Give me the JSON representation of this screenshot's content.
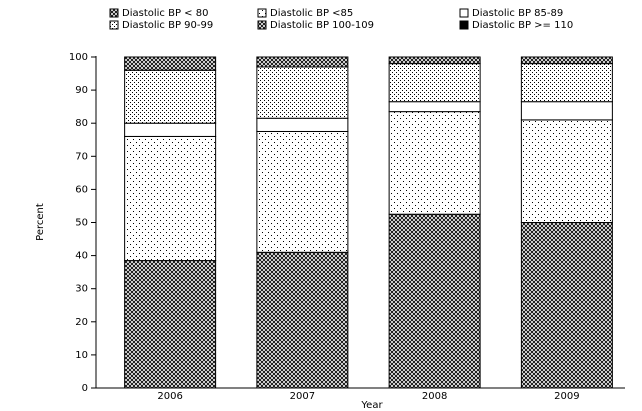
{
  "chart_data": {
    "type": "stacked-bar",
    "xlabel": "Year",
    "ylabel": "Percent",
    "categories": [
      "2006",
      "2007",
      "2008",
      "2009"
    ],
    "series": [
      {
        "name": "Diastolic BP < 80",
        "color": "#000000",
        "pattern": "crosshatch",
        "values": [
          38.5,
          41,
          52.5,
          50
        ]
      },
      {
        "name": "Diastolic BP <85",
        "color": "#000000",
        "pattern": "dots-sparse",
        "values": [
          37.5,
          36.5,
          31,
          31
        ]
      },
      {
        "name": "Diastolic BP 85-89",
        "color": "#ffffff",
        "pattern": "none",
        "values": [
          4,
          4,
          3,
          5.5
        ]
      },
      {
        "name": "Diastolic BP 90-99",
        "color": "#000000",
        "pattern": "dots-dense",
        "values": [
          16,
          15.5,
          11.5,
          11.5
        ]
      },
      {
        "name": "Diastolic BP 100-109",
        "color": "#000000",
        "pattern": "crosshatch",
        "values": [
          4,
          3,
          2,
          2
        ]
      },
      {
        "name": "Diastolic BP >= 110",
        "color": "#000000",
        "pattern": "solid",
        "values": [
          0,
          0,
          0,
          0
        ]
      }
    ],
    "ylim": [
      0,
      100
    ],
    "yticks": [
      0,
      10,
      20,
      30,
      40,
      50,
      60,
      70,
      80,
      90,
      100
    ],
    "grid": false
  }
}
